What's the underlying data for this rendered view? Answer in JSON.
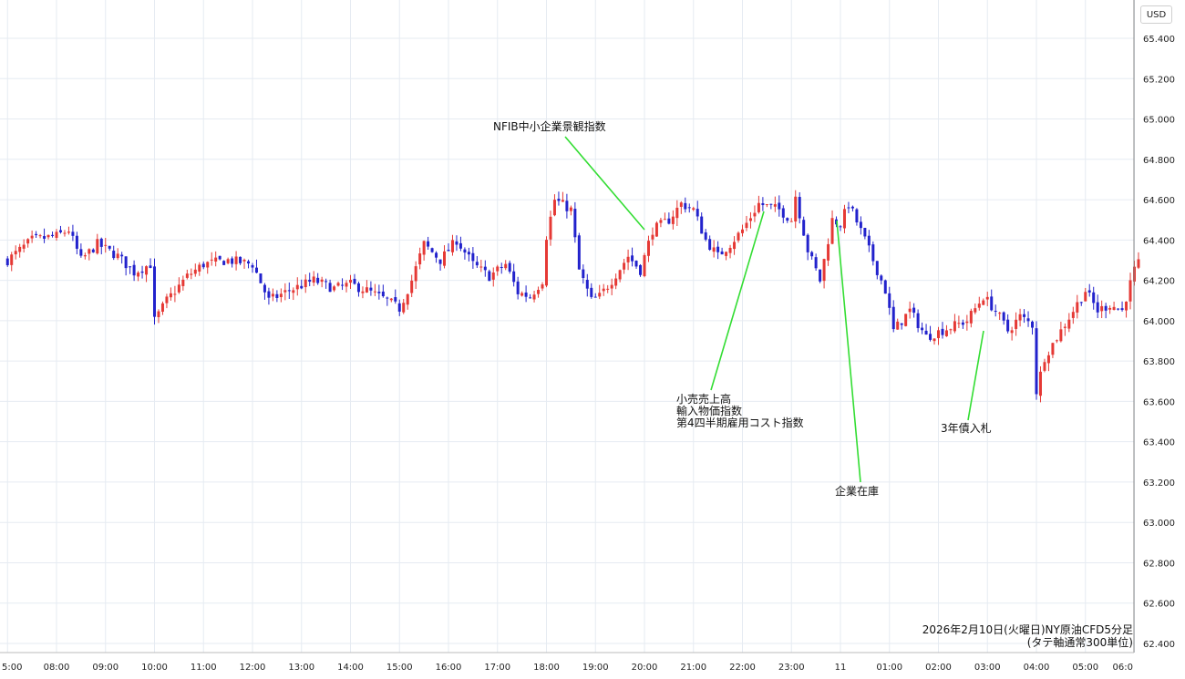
{
  "currency": "USD",
  "caption": {
    "line1": "2026年2月10日(火曜日)NY原油CFD5分足",
    "line2": "(タテ軸通常300単位)"
  },
  "colors": {
    "up": "#e53935",
    "down": "#2222cc",
    "grid": "#e6ebf2",
    "annotation_line": "#33dd33"
  },
  "chart_data": {
    "type": "candlestick",
    "interval": "5min",
    "x_tick_labels": [
      "5:00",
      "08:00",
      "09:00",
      "10:00",
      "11:00",
      "12:00",
      "13:00",
      "14:00",
      "15:00",
      "16:00",
      "17:00",
      "18:00",
      "19:00",
      "20:00",
      "21:00",
      "22:00",
      "23:00",
      "11",
      "01:00",
      "02:00",
      "03:00",
      "04:00",
      "05:00",
      "06:0"
    ],
    "y_tick_labels": [
      "65.400",
      "65.200",
      "65.000",
      "64.800",
      "64.600",
      "64.400",
      "64.200",
      "64.000",
      "63.800",
      "63.600",
      "63.400",
      "63.200",
      "63.000",
      "62.800",
      "62.600",
      "62.400"
    ],
    "ylim": [
      62.38,
      65.48
    ],
    "close_path": [
      [
        "07:00",
        64.3
      ],
      [
        "07:30",
        64.4
      ],
      [
        "08:00",
        64.42
      ],
      [
        "08:15",
        64.45
      ],
      [
        "08:30",
        64.3
      ],
      [
        "08:50",
        64.38
      ],
      [
        "09:15",
        64.32
      ],
      [
        "09:35",
        64.24
      ],
      [
        "09:55",
        64.28
      ],
      [
        "10:00",
        64.0
      ],
      [
        "10:15",
        64.1
      ],
      [
        "10:40",
        64.22
      ],
      [
        "11:00",
        64.28
      ],
      [
        "11:30",
        64.3
      ],
      [
        "12:00",
        64.28
      ],
      [
        "12:20",
        64.1
      ],
      [
        "12:45",
        64.15
      ],
      [
        "13:15",
        64.2
      ],
      [
        "13:40",
        64.16
      ],
      [
        "14:00",
        64.18
      ],
      [
        "14:20",
        64.15
      ],
      [
        "14:45",
        64.1
      ],
      [
        "15:00",
        64.06
      ],
      [
        "15:15",
        64.2
      ],
      [
        "15:30",
        64.38
      ],
      [
        "15:50",
        64.3
      ],
      [
        "16:10",
        64.4
      ],
      [
        "16:30",
        64.28
      ],
      [
        "16:50",
        64.22
      ],
      [
        "17:10",
        64.28
      ],
      [
        "17:25",
        64.14
      ],
      [
        "17:40",
        64.12
      ],
      [
        "17:55",
        64.2
      ],
      [
        "18:00",
        64.42
      ],
      [
        "18:10",
        64.6
      ],
      [
        "18:30",
        64.55
      ],
      [
        "18:40",
        64.25
      ],
      [
        "18:55",
        64.1
      ],
      [
        "19:05",
        64.12
      ],
      [
        "19:20",
        64.2
      ],
      [
        "19:40",
        64.32
      ],
      [
        "19:55",
        64.25
      ],
      [
        "20:10",
        64.45
      ],
      [
        "20:30",
        64.5
      ],
      [
        "20:45",
        64.58
      ],
      [
        "21:00",
        64.55
      ],
      [
        "21:15",
        64.4
      ],
      [
        "21:30",
        64.32
      ],
      [
        "21:45",
        64.38
      ],
      [
        "22:00",
        64.45
      ],
      [
        "22:20",
        64.58
      ],
      [
        "22:45",
        64.55
      ],
      [
        "23:00",
        64.5
      ],
      [
        "23:05",
        64.62
      ],
      [
        "23:20",
        64.35
      ],
      [
        "23:35",
        64.2
      ],
      [
        "23:50",
        64.5
      ],
      [
        "00:00",
        64.48
      ],
      [
        "00:10",
        64.58
      ],
      [
        "00:30",
        64.4
      ],
      [
        "00:40",
        64.3
      ],
      [
        "00:55",
        64.15
      ],
      [
        "01:05",
        63.95
      ],
      [
        "01:25",
        64.05
      ],
      [
        "01:45",
        63.92
      ],
      [
        "02:10",
        63.96
      ],
      [
        "02:35",
        64.0
      ],
      [
        "02:55",
        64.12
      ],
      [
        "03:10",
        64.05
      ],
      [
        "03:25",
        63.95
      ],
      [
        "03:40",
        64.02
      ],
      [
        "03:55",
        63.98
      ],
      [
        "04:00",
        63.65
      ],
      [
        "04:10",
        63.82
      ],
      [
        "04:30",
        63.95
      ],
      [
        "04:45",
        64.05
      ],
      [
        "05:00",
        64.15
      ],
      [
        "05:15",
        64.05
      ],
      [
        "05:30",
        64.08
      ],
      [
        "05:45",
        64.05
      ],
      [
        "06:00",
        64.25
      ],
      [
        "06:05",
        64.28
      ]
    ],
    "annotations": [
      {
        "lines": [
          "NFIB中小企業景観指数"
        ],
        "time": "20:00"
      },
      {
        "lines": [
          "小売売上高",
          "輸入物価指数",
          "第4四半期雇用コスト指数"
        ],
        "time": "22:30"
      },
      {
        "lines": [
          "企業在庫"
        ],
        "time": "00:00"
      },
      {
        "lines": [
          "3年債入札"
        ],
        "time": "03:00"
      }
    ],
    "grid": true
  }
}
